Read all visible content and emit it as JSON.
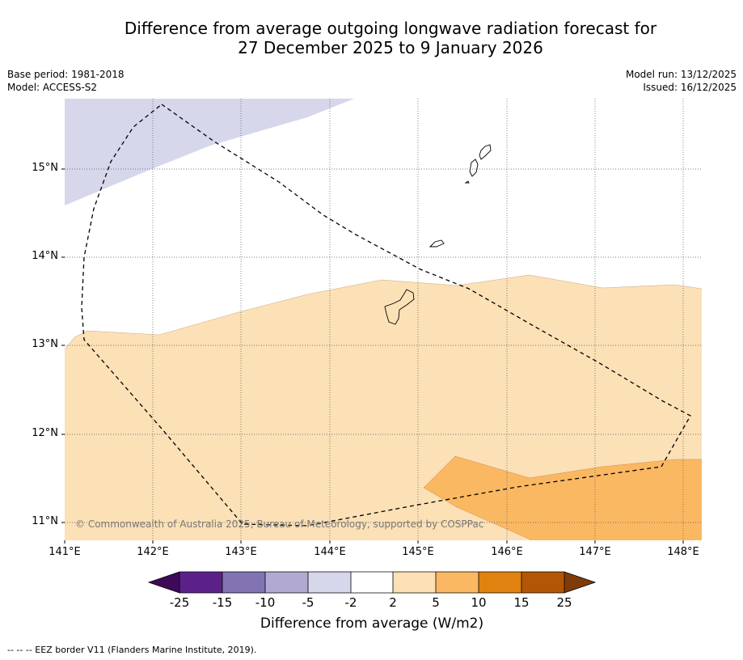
{
  "title": {
    "line1": "Difference from average outgoing longwave radiation forecast for",
    "line2": "27 December 2025 to 9 January 2026"
  },
  "meta_left": {
    "base_period": "Base period: 1981-2018",
    "model": "Model: ACCESS-S2"
  },
  "meta_right": {
    "model_run": "Model run: 13/12/2025",
    "issued": "Issued: 16/12/2025"
  },
  "map": {
    "lat_ticks": [
      "15°N",
      "14°N",
      "13°N",
      "12°N",
      "11°N"
    ],
    "lon_ticks": [
      "141°E",
      "142°E",
      "143°E",
      "144°E",
      "145°E",
      "146°E",
      "147°E",
      "148°E"
    ],
    "copyright": "© Commonwealth of Australia 2025, Bureau of Meteorology, supported by COSPPac",
    "regions": [
      {
        "name": "-5 to -2 W/m2 anomaly",
        "color": "#d6d7ea"
      },
      {
        "name": "2 to 5 W/m2 anomaly",
        "color": "#fce0b6"
      },
      {
        "name": "5 to 10 W/m2 anomaly",
        "color": "#fbb862"
      }
    ]
  },
  "colorbar": {
    "labels": [
      "-25",
      "-15",
      "-10",
      "-5",
      "-2",
      "2",
      "5",
      "10",
      "15",
      "25"
    ],
    "colors": [
      "#3f0a59",
      "#5b2189",
      "#8273b2",
      "#b1a9d2",
      "#d6d7ea",
      "#ffffff",
      "#fce0b6",
      "#fbb862",
      "#e0820f",
      "#b35606",
      "#7f3b08"
    ],
    "title": "Difference from average (W/m2)"
  },
  "footnote": "--  --  -- EEZ border V11 (Flanders Marine Institute, 2019)."
}
